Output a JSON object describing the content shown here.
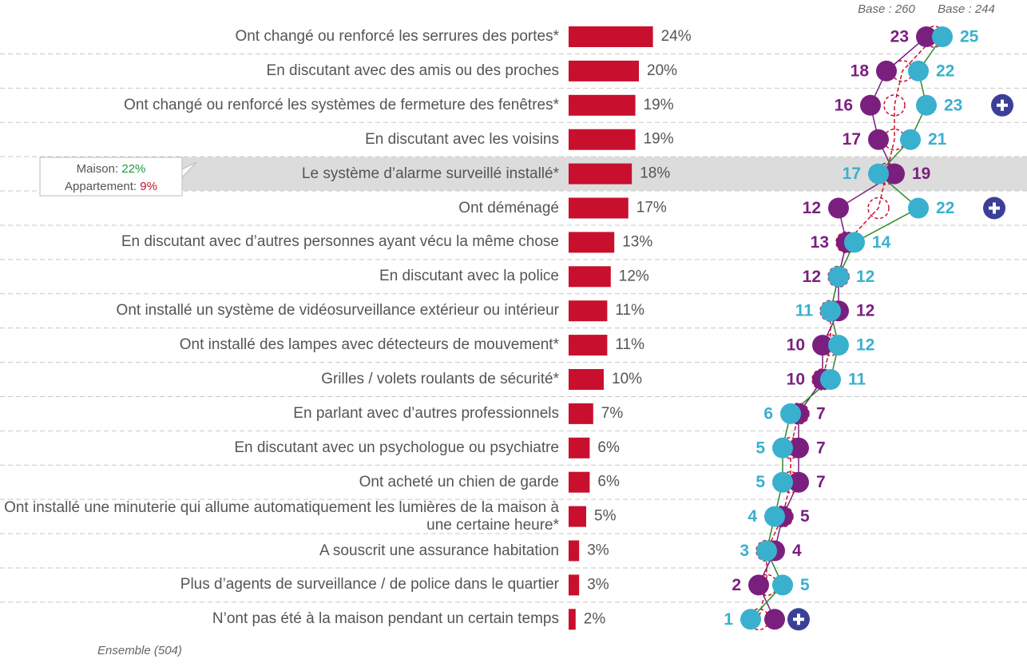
{
  "chart_data": {
    "type": "bar-dot",
    "categories": [
      "Ont changé ou renforcé les serrures des portes*",
      "En discutant avec des amis ou des proches",
      "Ont changé ou renforcé les systèmes de fermeture des fenêtres*",
      "En discutant avec les voisins",
      "Le système d’alarme surveillé installé*",
      "Ont déménagé",
      "En discutant avec d’autres personnes ayant vécu la même chose",
      "En discutant avec la police",
      "Ont installé un système de vidéosurveillance extérieur ou intérieur",
      "Ont  installé des lampes avec détecteurs de mouvement*",
      "Grilles / volets roulants de sécurité*",
      "En parlant avec d’autres professionnels",
      "En discutant avec un psychologue ou psychiatre",
      "Ont acheté un chien de garde",
      "Ont installé une minuterie qui allume automatiquement les lumières de la maison à une certaine heure*",
      "A souscrit une assurance habitation",
      "Plus d’agents de surveillance / de police dans le quartier",
      "N’ont pas été à la maison pendant un certain temps"
    ],
    "values": [
      24,
      20,
      19,
      19,
      18,
      17,
      13,
      12,
      11,
      11,
      10,
      7,
      6,
      6,
      5,
      3,
      3,
      2
    ],
    "value_labels": [
      "24%",
      "20%",
      "19%",
      "19%",
      "18%",
      "17%",
      "13%",
      "12%",
      "11%",
      "11%",
      "10%",
      "7%",
      "6%",
      "6%",
      "5%",
      "3%",
      "3%",
      "2%"
    ],
    "color": "#c8102e",
    "series": [
      {
        "name": "Base : 260",
        "color": "#7b1f7f",
        "line_color": "#7b1f7f",
        "values": [
          23,
          18,
          16,
          17,
          19,
          12,
          13,
          12,
          12,
          10,
          10,
          7,
          7,
          7,
          5,
          4,
          2,
          4
        ]
      },
      {
        "name": "Base : 244",
        "color": "#3ab0cf",
        "line_color": "#2a8a2a",
        "values": [
          25,
          22,
          23,
          21,
          17,
          22,
          14,
          12,
          11,
          12,
          11,
          6,
          5,
          5,
          4,
          3,
          5,
          1
        ]
      }
    ],
    "plus_icon": [
      false,
      false,
      true,
      false,
      false,
      true,
      false,
      false,
      false,
      false,
      false,
      false,
      false,
      false,
      false,
      false,
      false,
      true
    ],
    "highlight_row": 4,
    "callout": [
      {
        "label": "Maison:",
        "value_label": "22%",
        "color": "#1a9a3a"
      },
      {
        "label": "Appartement:",
        "value_label": "9%",
        "color": "#c8102e"
      }
    ],
    "footnote": "Ensemble (504)",
    "grid": true
  }
}
